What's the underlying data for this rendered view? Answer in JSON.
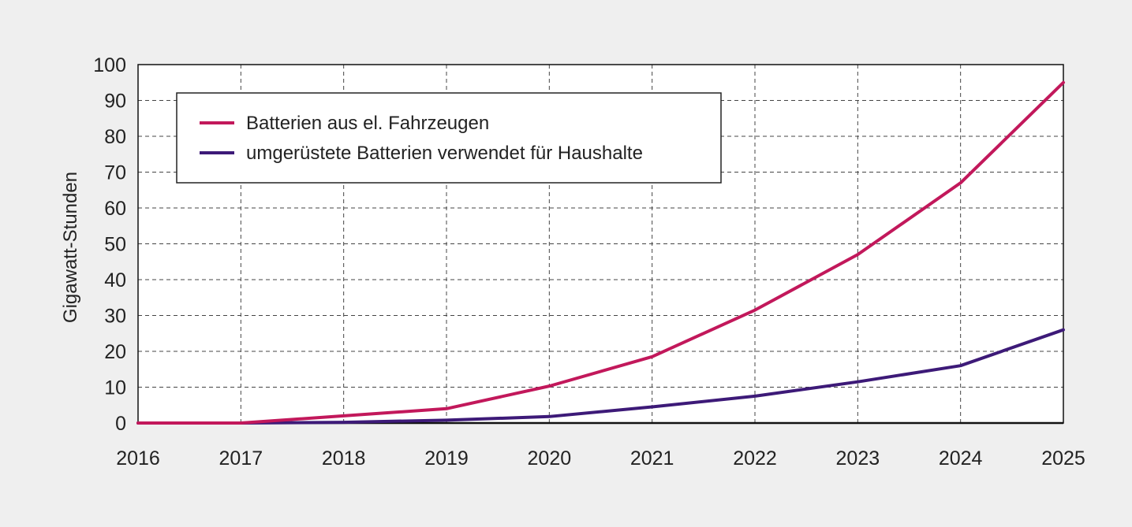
{
  "chart_data": {
    "type": "line",
    "x": [
      "2016",
      "2017",
      "2018",
      "2019",
      "2020",
      "2021",
      "2022",
      "2023",
      "2024",
      "2025"
    ],
    "ylabel": "Gigawatt-Stunden",
    "ylim": [
      0,
      100
    ],
    "yticks": [
      0,
      10,
      20,
      30,
      40,
      50,
      60,
      70,
      80,
      90,
      100
    ],
    "grid": true,
    "legend_position": "top-left",
    "series": [
      {
        "name": "Batterien aus el. Fahrzeugen",
        "color": "#c2185b",
        "values": [
          0,
          0,
          2,
          4,
          10.3,
          18.5,
          31.5,
          47,
          67,
          95
        ]
      },
      {
        "name": "umgerüstete Batterien verwendet für Haushalte",
        "color": "#3d1a78",
        "values": [
          0,
          0,
          0.2,
          0.8,
          1.8,
          4.5,
          7.5,
          11.5,
          16,
          26
        ]
      }
    ]
  }
}
